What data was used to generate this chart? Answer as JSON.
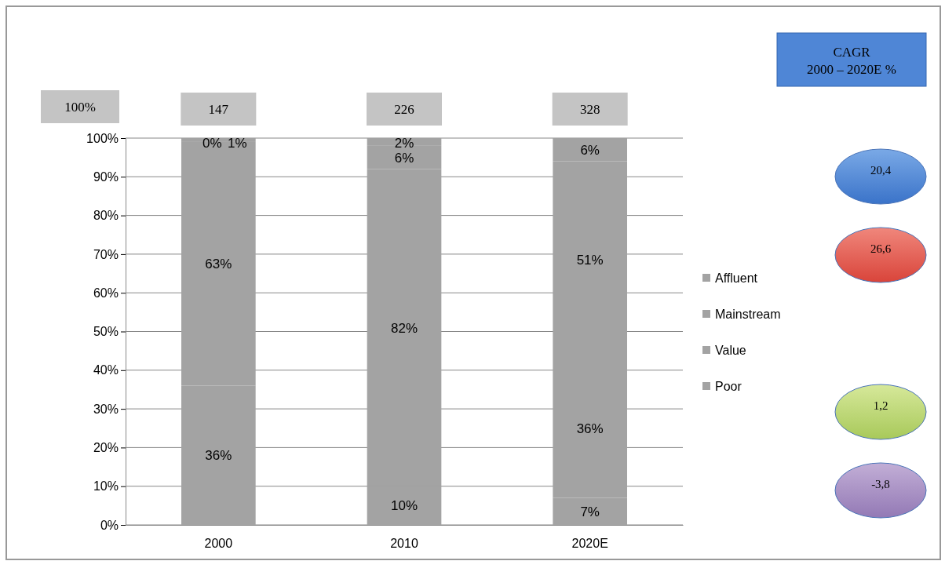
{
  "chart_data": {
    "type": "bar",
    "stacked": true,
    "categories": [
      "2000",
      "2010",
      "2020E"
    ],
    "series": [
      {
        "name": "Poor",
        "color": "#a3a3a3",
        "values": [
          36,
          10,
          7
        ],
        "value_labels": [
          "36%",
          "10%",
          "7%"
        ]
      },
      {
        "name": "Value",
        "color": "#a3a3a3",
        "values": [
          63,
          82,
          36
        ],
        "value_labels": [
          "63%",
          "82%",
          "36%"
        ]
      },
      {
        "name": "Mainstream",
        "color": "#a3a3a3",
        "values": [
          1,
          6,
          51
        ],
        "value_labels": [
          "1%",
          "6%",
          "51%"
        ]
      },
      {
        "name": "Affluent",
        "color": "#a3a3a3",
        "values": [
          0,
          2,
          6
        ],
        "value_labels": [
          "0%",
          "2%",
          "6%"
        ]
      }
    ],
    "ylim": [
      0,
      100
    ],
    "yticks": [
      {
        "value": 0,
        "label": "0%"
      },
      {
        "value": 10,
        "label": "10%"
      },
      {
        "value": 20,
        "label": "20%"
      },
      {
        "value": 30,
        "label": "30%"
      },
      {
        "value": 40,
        "label": "40%"
      },
      {
        "value": 50,
        "label": "50%"
      },
      {
        "value": 60,
        "label": "60%"
      },
      {
        "value": 70,
        "label": "70%"
      },
      {
        "value": 80,
        "label": "80%"
      },
      {
        "value": 90,
        "label": "90%"
      },
      {
        "value": 100,
        "label": "100%"
      }
    ],
    "grid": "y",
    "legend": "right",
    "annotations": [
      "100%",
      "CAGR 2000 – 2020E %",
      "20,4",
      "26,6",
      "1,2",
      "-3,8",
      "147",
      "226",
      "328"
    ]
  }
}
